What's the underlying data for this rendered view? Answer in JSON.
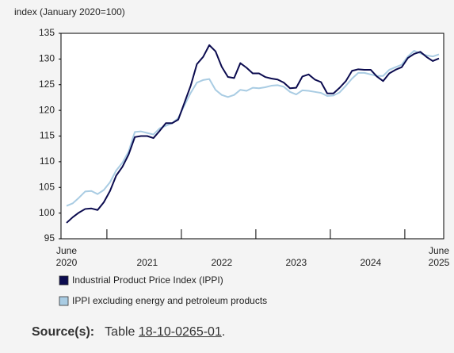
{
  "chart_data": {
    "type": "line",
    "title": "index (January 2020=100)",
    "categories": [
      "June 2020",
      null,
      null,
      null,
      null,
      null,
      null,
      null,
      null,
      null,
      null,
      null,
      null,
      "2021",
      null,
      null,
      null,
      null,
      null,
      null,
      null,
      null,
      null,
      null,
      null,
      "2022",
      null,
      null,
      null,
      null,
      null,
      null,
      null,
      null,
      null,
      null,
      null,
      "2023",
      null,
      null,
      null,
      null,
      null,
      null,
      null,
      null,
      null,
      null,
      null,
      "2024",
      null,
      null,
      null,
      null,
      null,
      null,
      null,
      null,
      null,
      null,
      "June 2025"
    ],
    "series": [
      {
        "name": "Industrial Product Price Index (IPPI)",
        "color": "#0b0b4f",
        "values": [
          98.1,
          99.2,
          100.1,
          100.8,
          100.9,
          100.6,
          102.1,
          104.3,
          107.3,
          109.0,
          111.4,
          114.8,
          115.0,
          115.0,
          114.6,
          116.0,
          117.5,
          117.5,
          118.2,
          121.5,
          124.8,
          129.0,
          130.4,
          132.7,
          131.5,
          128.5,
          126.5,
          126.3,
          129.2,
          128.3,
          127.2,
          127.2,
          126.5,
          126.2,
          126.0,
          125.4,
          124.3,
          124.4,
          126.6,
          127.0,
          126.0,
          125.5,
          123.3,
          123.3,
          124.4,
          125.7,
          127.7,
          128.0,
          127.9,
          127.9,
          126.6,
          125.7,
          127.2,
          127.9,
          128.4,
          130.2,
          131.0,
          131.4,
          130.4,
          129.6,
          130.1
        ]
      },
      {
        "name": "IPPI excluding energy and petroleum products",
        "color": "#a9cce3",
        "values": [
          101.4,
          101.9,
          103.0,
          104.2,
          104.3,
          103.7,
          104.5,
          106.0,
          108.3,
          109.8,
          112.0,
          115.8,
          115.9,
          115.6,
          115.3,
          116.5,
          117.0,
          117.5,
          118.5,
          121.0,
          123.4,
          125.4,
          125.9,
          126.1,
          124.0,
          123.0,
          122.6,
          123.0,
          124.0,
          123.8,
          124.4,
          124.3,
          124.5,
          124.8,
          124.9,
          124.6,
          123.6,
          123.1,
          123.9,
          123.8,
          123.6,
          123.4,
          122.8,
          122.9,
          123.5,
          124.8,
          126.2,
          127.3,
          127.3,
          127.0,
          126.7,
          126.7,
          127.9,
          128.4,
          128.9,
          130.5,
          131.6,
          131.1,
          130.7,
          130.5,
          130.9
        ]
      }
    ],
    "ylim": [
      95,
      135
    ],
    "yticks": [
      95,
      100,
      105,
      110,
      115,
      120,
      125,
      130,
      135
    ],
    "grid": false,
    "source": {
      "label": "Source(s):",
      "prefix": "Table",
      "table": "18-10-0265-01",
      "suffix": "."
    }
  }
}
